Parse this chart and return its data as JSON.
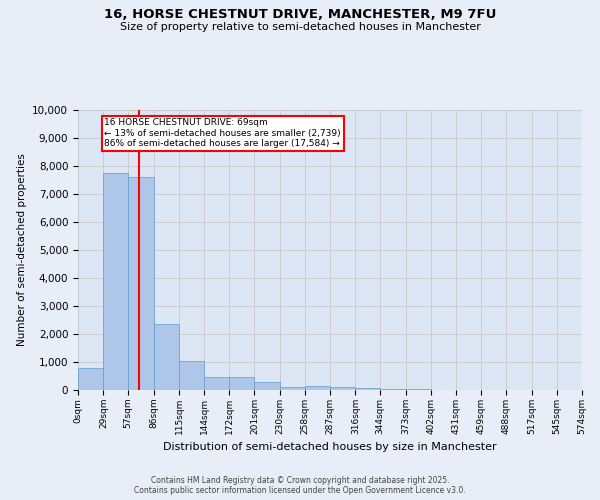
{
  "title_line1": "16, HORSE CHESTNUT DRIVE, MANCHESTER, M9 7FU",
  "title_line2": "Size of property relative to semi-detached houses in Manchester",
  "xlabel": "Distribution of semi-detached houses by size in Manchester",
  "ylabel": "Number of semi-detached properties",
  "annotation_text": "16 HORSE CHESTNUT DRIVE: 69sqm\n← 13% of semi-detached houses are smaller (2,739)\n86% of semi-detached houses are larger (17,584) →",
  "bin_edges": [
    0,
    29,
    57,
    86,
    115,
    144,
    172,
    201,
    230,
    258,
    287,
    316,
    344,
    373,
    402,
    431,
    459,
    488,
    517,
    545,
    574
  ],
  "bin_labels": [
    "0sqm",
    "29sqm",
    "57sqm",
    "86sqm",
    "115sqm",
    "144sqm",
    "172sqm",
    "201sqm",
    "230sqm",
    "258sqm",
    "287sqm",
    "316sqm",
    "344sqm",
    "373sqm",
    "402sqm",
    "431sqm",
    "459sqm",
    "488sqm",
    "517sqm",
    "545sqm",
    "574sqm"
  ],
  "bar_heights": [
    800,
    7750,
    7620,
    2350,
    1030,
    460,
    460,
    270,
    100,
    130,
    100,
    60,
    30,
    20,
    10,
    10,
    10,
    5,
    5,
    3
  ],
  "bar_color": "#aec6e8",
  "bar_edge_color": "#5a9fd4",
  "vline_x": 69,
  "vline_color": "red",
  "grid_color": "#cccccc",
  "bg_color": "#e8eef7",
  "plot_bg_color": "#dce6f5",
  "ylim": [
    0,
    10000
  ],
  "yticks": [
    0,
    1000,
    2000,
    3000,
    4000,
    5000,
    6000,
    7000,
    8000,
    9000,
    10000
  ],
  "footer_line1": "Contains HM Land Registry data © Crown copyright and database right 2025.",
  "footer_line2": "Contains public sector information licensed under the Open Government Licence v3.0.",
  "annotation_box_color": "red",
  "annotation_bg_color": "white"
}
